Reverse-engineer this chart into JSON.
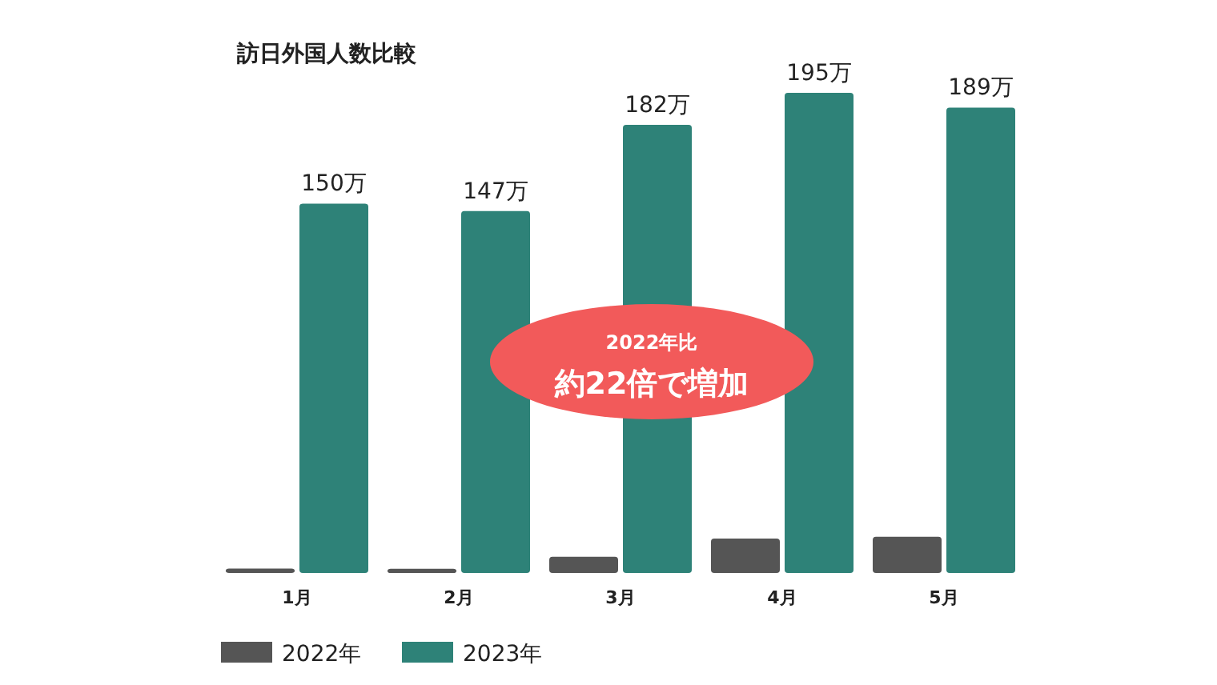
{
  "chart_data": {
    "type": "bar",
    "title": "訪日外国人数比較",
    "categories": [
      "1月",
      "2月",
      "3月",
      "4月",
      "5月"
    ],
    "series": [
      {
        "name": "2022年",
        "color": "#555555",
        "values": [
          1.8,
          1.7,
          6.6,
          14,
          14.7
        ]
      },
      {
        "name": "2023年",
        "color": "#2e8278",
        "values": [
          150,
          147,
          182,
          195,
          189
        ],
        "value_labels": [
          "150万",
          "147万",
          "182万",
          "195万",
          "189万"
        ]
      }
    ],
    "annotations": [
      "2022年比",
      "約22倍で増加"
    ],
    "legend": "bottom left"
  }
}
